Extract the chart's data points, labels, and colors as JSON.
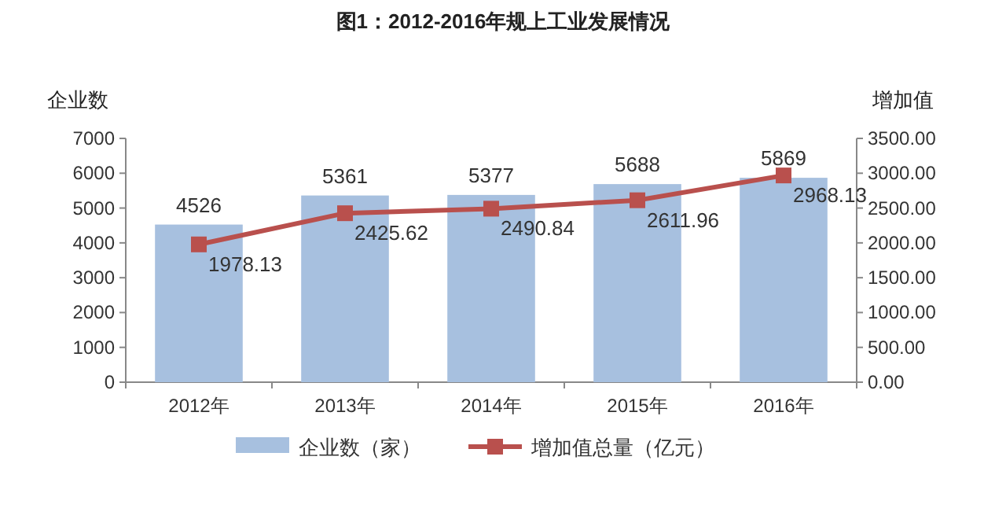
{
  "chart_data": {
    "type": "bar",
    "title": "图1：2012-2016年规上工业发展情况",
    "ylabel": "企业数",
    "y2label": "增加值",
    "categories": [
      "2012年",
      "2013年",
      "2014年",
      "2015年",
      "2016年"
    ],
    "series": [
      {
        "name": "企业数（家）",
        "color": "#a7c0df",
        "values": [
          4526,
          5361,
          5377,
          5688,
          5869
        ]
      },
      {
        "name": "增加值总量（亿元）",
        "type": "line",
        "axis": "y2",
        "color": "#b9504d",
        "marker": "square",
        "values": [
          1978.13,
          2425.62,
          2490.84,
          2611.96,
          2968.13
        ]
      }
    ],
    "ylim": [
      0,
      7000
    ],
    "yticks": [
      0,
      1000,
      2000,
      3000,
      4000,
      5000,
      6000,
      7000
    ],
    "y2lim": [
      0,
      3500
    ],
    "y2ticks": [
      {
        "value": 0,
        "label": "0.00"
      },
      {
        "value": 500,
        "label": "500.00"
      },
      {
        "value": 1000,
        "label": "1000.00"
      },
      {
        "value": 1500,
        "label": "1500.00"
      },
      {
        "value": 2000,
        "label": "2000.00"
      },
      {
        "value": 2500,
        "label": "2500.00"
      },
      {
        "value": 3000,
        "label": "3000.00"
      },
      {
        "value": 3500,
        "label": "3500.00"
      }
    ],
    "data_labels": true,
    "legend": "bottom"
  }
}
